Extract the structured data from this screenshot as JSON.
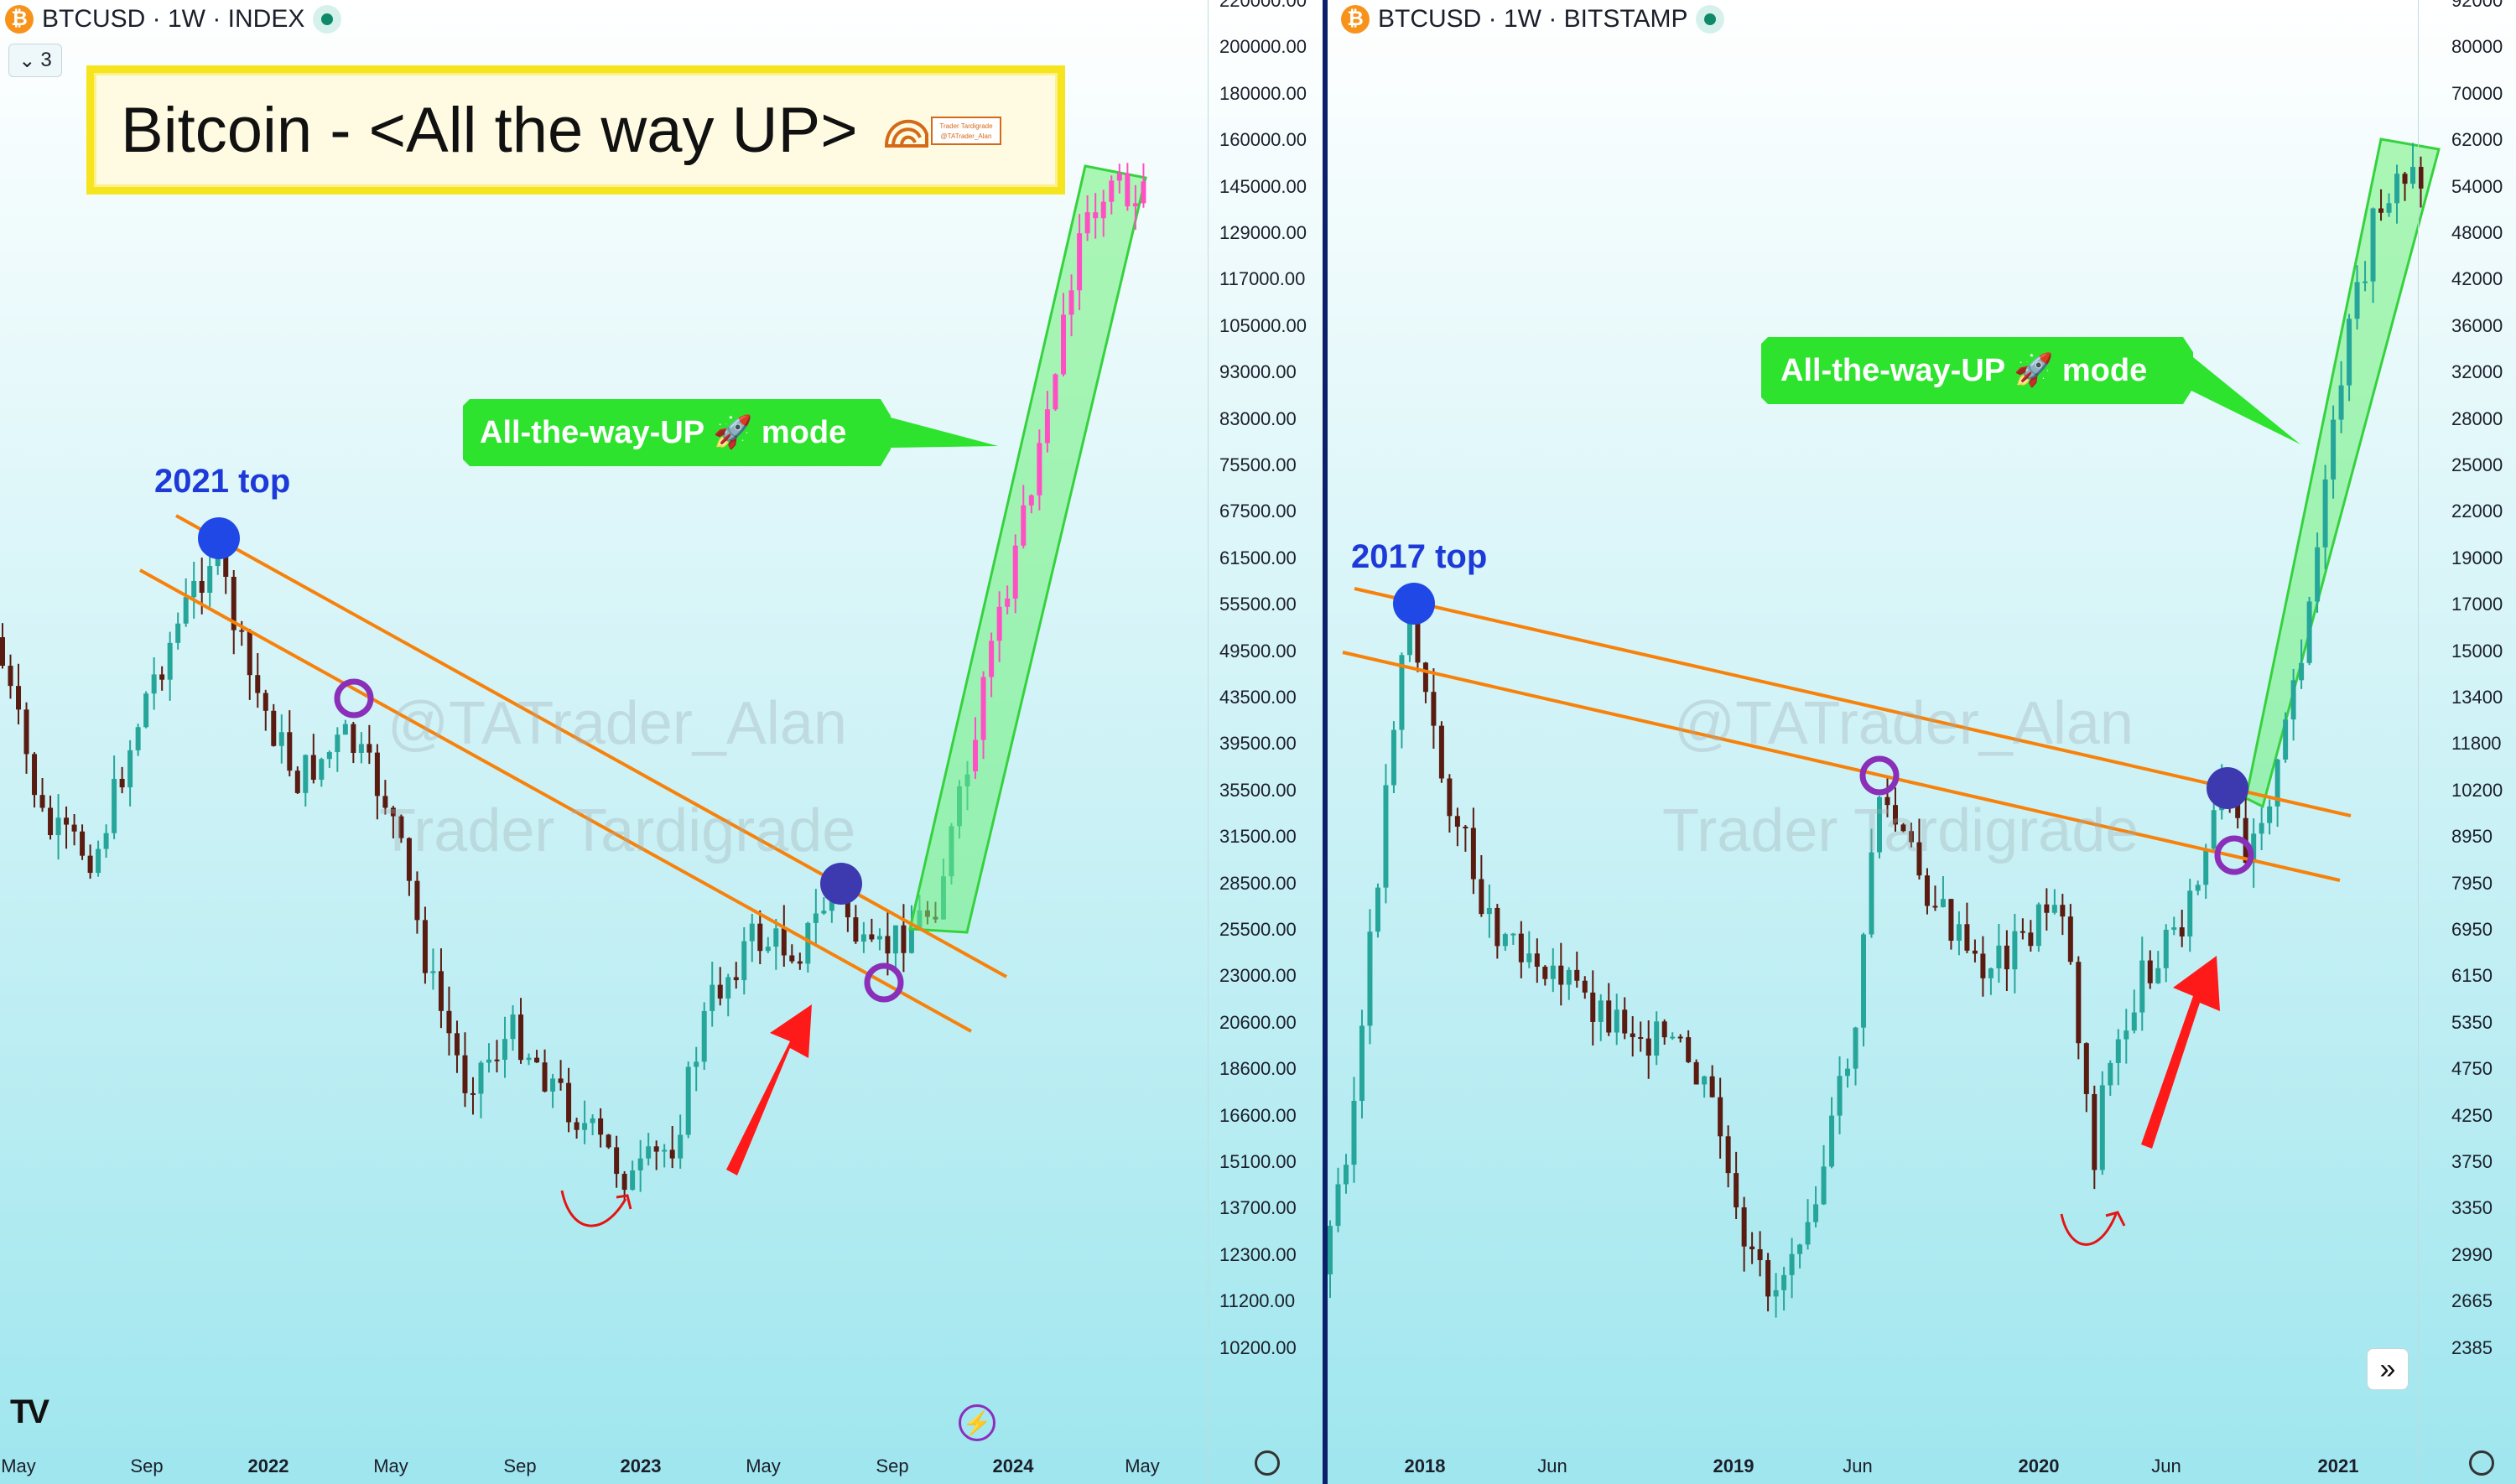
{
  "left_chart": {
    "symbol": "BTCUSD · 1W · INDEX",
    "collapse_count": "3",
    "title": "Bitcoin - <All the way UP>",
    "logo_text": [
      "Trader Tardigrade",
      "@TATrader_Alan"
    ],
    "watermark": [
      "@TATrader_Alan",
      "Trader Tardigrade"
    ],
    "top_label": "2021 top",
    "callout": "All-the-way-UP 🚀 mode",
    "y_ticks": [
      "220000.00",
      "200000.00",
      "180000.00",
      "160000.00",
      "145000.00",
      "129000.00",
      "117000.00",
      "105000.00",
      "93000.00",
      "83000.00",
      "75500.00",
      "67500.00",
      "61500.00",
      "55500.00",
      "49500.00",
      "43500.00",
      "39500.00",
      "35500.00",
      "31500.00",
      "28500.00",
      "25500.00",
      "23000.00",
      "20600.00",
      "18600.00",
      "16600.00",
      "15100.00",
      "13700.00",
      "12300.00",
      "11200.00",
      "10200.00"
    ],
    "x_ticks": [
      {
        "label": "May",
        "bold": false
      },
      {
        "label": "Sep",
        "bold": false
      },
      {
        "label": "2022",
        "bold": true
      },
      {
        "label": "May",
        "bold": false
      },
      {
        "label": "Sep",
        "bold": false
      },
      {
        "label": "2023",
        "bold": true
      },
      {
        "label": "May",
        "bold": false
      },
      {
        "label": "Sep",
        "bold": false
      },
      {
        "label": "2024",
        "bold": true
      },
      {
        "label": "May",
        "bold": false
      }
    ]
  },
  "right_chart": {
    "symbol": "BTCUSD · 1W · BITSTAMP",
    "watermark": [
      "@TATrader_Alan",
      "Trader Tardigrade"
    ],
    "top_label": "2017 top",
    "callout": "All-the-way-UP 🚀 mode",
    "y_ticks": [
      "92000",
      "80000",
      "70000",
      "62000",
      "54000",
      "48000",
      "42000",
      "36000",
      "32000",
      "28000",
      "25000",
      "22000",
      "19000",
      "17000",
      "15000",
      "13400",
      "11800",
      "10200",
      "8950",
      "7950",
      "6950",
      "6150",
      "5350",
      "4750",
      "4250",
      "3750",
      "3350",
      "2990",
      "2665",
      "2385"
    ],
    "x_ticks": [
      {
        "label": "2018",
        "bold": true
      },
      {
        "label": "Jun",
        "bold": false
      },
      {
        "label": "2019",
        "bold": true
      },
      {
        "label": "Jun",
        "bold": false
      },
      {
        "label": "2020",
        "bold": true
      },
      {
        "label": "Jun",
        "bold": false
      },
      {
        "label": "2021",
        "bold": true
      }
    ]
  },
  "colors": {
    "background_top": "#ffffff",
    "background_bottom": "#9fe6ee",
    "candle_up": "#26a69a",
    "candle_down": "#5a1b10",
    "projection": "#ff4fc4",
    "trendline": "#f6820c",
    "channel_fill": "#6ef07a",
    "marker_blue": "#2048e6",
    "marker_ring": "#8a2fb8",
    "arrow": "#ff1a1a",
    "callout_bg": "#2ee32e"
  },
  "icons": [
    "bitcoin-icon",
    "live-status-icon",
    "chevron-down-icon",
    "tradingview-logo-icon",
    "settings-gear-icon",
    "flash-icon",
    "double-chevron-right-icon"
  ]
}
